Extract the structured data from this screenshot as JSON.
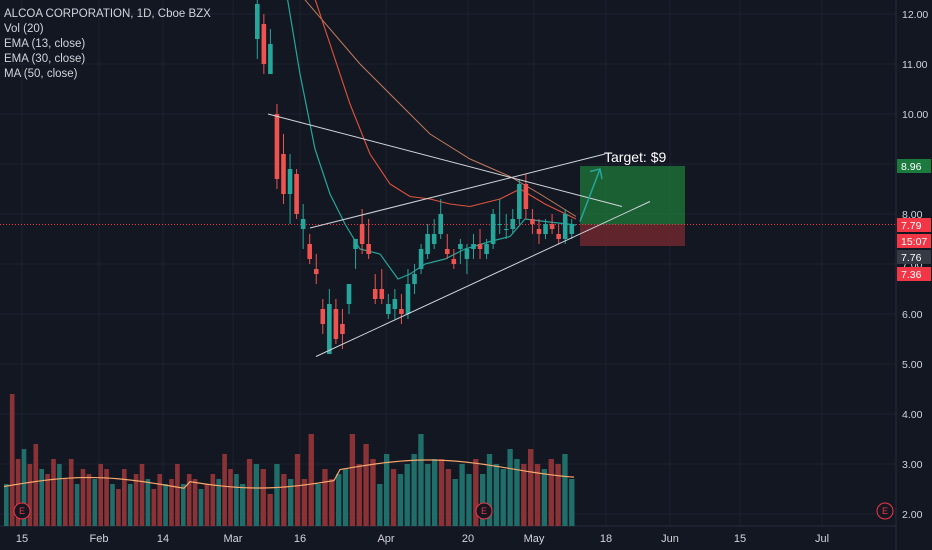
{
  "legend": {
    "title": "ALCOA CORPORATION, 1D, Cboe BZX",
    "vol": "Vol (20)",
    "ema13": "EMA (13, close)",
    "ema30": "EMA (30, close)",
    "ma50": "MA (50, close)"
  },
  "annotation": {
    "target_label": "Target:  $9"
  },
  "price_tags": [
    {
      "text": "8.96",
      "value": 8.96,
      "color": "#1b7a3e"
    },
    {
      "text": "7.79",
      "value": 7.79,
      "color": "#f23645"
    },
    {
      "text": "15:07",
      "value": 7.59,
      "color": "#f23645"
    },
    {
      "text": "7.76",
      "value": 7.76,
      "color": "#363a45"
    },
    {
      "text": "7.36",
      "value": 7.36,
      "color": "#f23645"
    }
  ],
  "colors": {
    "up": "#26a69a",
    "down": "#ef5350",
    "ema13": "#26a69a",
    "ema30": "#e0533b",
    "ma50": "#c27b5a",
    "vol_ma": "#f5a66a",
    "target_zone": "#1e7a3a",
    "stop_zone": "#7a2a30",
    "trendline": "#d1d4dc"
  },
  "earnings_markers": [
    "E",
    "E",
    "E"
  ],
  "chart_data": {
    "type": "candlestick",
    "title": "ALCOA CORPORATION, 1D, Cboe BZX",
    "y_ticks": [
      "2.00",
      "3.00",
      "4.00",
      "5.00",
      "6.00",
      "7.00",
      "8.00",
      "9.00",
      "10.00",
      "11.00",
      "12.00"
    ],
    "x_ticks": [
      "15",
      "Feb",
      "14",
      "Mar",
      "16",
      "Apr",
      "20",
      "May",
      "18",
      "Jun",
      "15",
      "Jul"
    ],
    "ohlc": [
      [
        11.5,
        12.5,
        11.1,
        12.2
      ],
      [
        11.8,
        12.0,
        10.8,
        11.0
      ],
      [
        10.8,
        11.7,
        10.8,
        11.4
      ],
      [
        10.0,
        10.2,
        8.5,
        8.7
      ],
      [
        9.2,
        9.6,
        8.2,
        8.4
      ],
      [
        8.4,
        9.2,
        7.8,
        8.9
      ],
      [
        8.8,
        8.9,
        7.9,
        8.0
      ],
      [
        7.7,
        8.2,
        7.3,
        7.9
      ],
      [
        7.4,
        7.6,
        7.0,
        7.1
      ],
      [
        6.9,
        7.2,
        6.6,
        6.8
      ],
      [
        6.1,
        6.3,
        5.6,
        5.8
      ],
      [
        5.2,
        6.5,
        5.2,
        6.2
      ],
      [
        6.1,
        6.3,
        5.4,
        5.5
      ],
      [
        5.8,
        6.1,
        5.3,
        5.6
      ],
      [
        6.2,
        6.6,
        6.0,
        6.6
      ],
      [
        7.3,
        7.5,
        6.9,
        7.5
      ],
      [
        7.8,
        8.1,
        7.2,
        7.4
      ],
      [
        7.4,
        7.9,
        7.1,
        7.2
      ],
      [
        6.5,
        6.8,
        6.2,
        6.3
      ],
      [
        6.5,
        6.9,
        6.2,
        6.3
      ],
      [
        6.0,
        6.4,
        5.9,
        6.2
      ],
      [
        6.1,
        6.5,
        5.9,
        6.3
      ],
      [
        6.1,
        6.4,
        5.8,
        6.0
      ],
      [
        6.0,
        6.9,
        5.9,
        6.6
      ],
      [
        6.6,
        7.0,
        6.4,
        6.8
      ],
      [
        6.9,
        7.4,
        6.8,
        7.3
      ],
      [
        7.2,
        7.8,
        7.1,
        7.6
      ],
      [
        7.4,
        7.9,
        7.3,
        7.6
      ],
      [
        7.6,
        8.3,
        7.5,
        8.0
      ],
      [
        7.3,
        7.6,
        7.1,
        7.2
      ],
      [
        7.1,
        7.3,
        6.9,
        7.0
      ],
      [
        7.3,
        7.5,
        7.0,
        7.4
      ],
      [
        7.1,
        7.4,
        6.8,
        7.3
      ],
      [
        7.3,
        7.6,
        7.1,
        7.4
      ],
      [
        7.4,
        7.7,
        7.1,
        7.3
      ],
      [
        7.2,
        7.5,
        7.1,
        7.4
      ],
      [
        7.4,
        8.1,
        7.3,
        8.0
      ],
      [
        7.8,
        8.3,
        7.6,
        7.8
      ],
      [
        7.7,
        8.0,
        7.5,
        7.7
      ],
      [
        7.7,
        8.1,
        7.6,
        7.9
      ],
      [
        7.9,
        8.7,
        7.8,
        8.6
      ],
      [
        8.6,
        8.8,
        7.9,
        8.1
      ],
      [
        7.9,
        8.1,
        7.6,
        7.8
      ],
      [
        7.7,
        7.9,
        7.4,
        7.6
      ],
      [
        7.6,
        7.9,
        7.5,
        7.8
      ],
      [
        7.8,
        8.0,
        7.6,
        7.7
      ],
      [
        7.6,
        7.8,
        7.4,
        7.5
      ],
      [
        7.5,
        8.1,
        7.4,
        8.0
      ],
      [
        7.6,
        7.9,
        7.5,
        7.8
      ]
    ],
    "volume": [
      2.6,
      3.1,
      3.0,
      2.9,
      2.4,
      3.0,
      2.8,
      2.7,
      3.2,
      2.7,
      3.6,
      2.6,
      2.9,
      2.7,
      2.8,
      2.9,
      3.6,
      3.0,
      3.4,
      3.1,
      2.6,
      3.2,
      2.9,
      2.8,
      3.0,
      3.2,
      3.6,
      3.0,
      3.1,
      3.1,
      2.9,
      2.7,
      3.0,
      2.8,
      3.1,
      2.8,
      3.2,
      3.0,
      2.9,
      3.3,
      3.1,
      3.0,
      3.3,
      3.0,
      2.9,
      3.1,
      3.0,
      3.2,
      2.7
    ],
    "volume_early": [
      2.6,
      4.4,
      3.1,
      3.3,
      3.0,
      3.4,
      2.9,
      2.8,
      3.1,
      3.0,
      2.7,
      3.1,
      2.6,
      2.9,
      2.8,
      2.7,
      3.0,
      2.9,
      2.6,
      2.5,
      2.9,
      2.6,
      2.8,
      3.0,
      2.7,
      2.5,
      2.8,
      2.6,
      2.7,
      3.0,
      2.6,
      2.8,
      2.7,
      2.5,
      2.6,
      2.8,
      2.7,
      3.2,
      2.9,
      2.8
    ],
    "ema13": [
      8.2,
      7.4,
      7.1,
      6.8,
      6.6,
      6.7,
      6.9,
      7.0,
      7.0,
      7.1,
      7.2,
      7.3,
      7.4,
      7.5,
      7.6,
      7.7,
      7.7
    ],
    "ema30": [
      9.0,
      8.5,
      8.1,
      7.8,
      7.6,
      7.5,
      7.4,
      7.4,
      7.4,
      7.5,
      7.6,
      7.7,
      7.8
    ],
    "ylim": [
      2.0,
      12.0
    ],
    "xlabel": "",
    "ylabel": ""
  }
}
